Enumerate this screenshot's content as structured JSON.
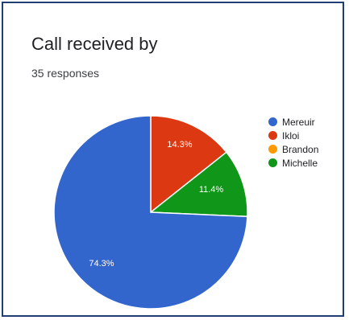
{
  "chart_data": {
    "type": "pie",
    "title": "Call received by",
    "subtitle": "35 responses",
    "legend_position": "right",
    "slices": [
      {
        "name": "Mereuir",
        "value": 74.3,
        "label": "74.3%",
        "color": "#3366cc"
      },
      {
        "name": "Ikloi",
        "value": 14.3,
        "label": "14.3%",
        "color": "#dc3912"
      },
      {
        "name": "Brandon",
        "value": 0,
        "label": "",
        "color": "#ff9900"
      },
      {
        "name": "Michelle",
        "value": 11.4,
        "label": "11.4%",
        "color": "#109618"
      }
    ]
  }
}
